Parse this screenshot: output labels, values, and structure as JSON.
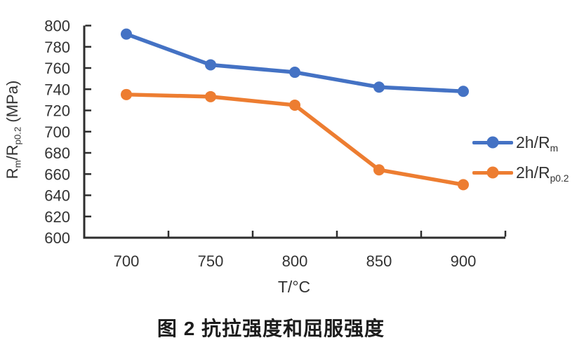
{
  "figure": {
    "caption": "图 2 抗拉强度和屈服强度"
  },
  "chart_data": {
    "type": "line",
    "title": "",
    "categories": [
      "700",
      "750",
      "800",
      "850",
      "900"
    ],
    "x_values": [
      700,
      750,
      800,
      850,
      900
    ],
    "series": [
      {
        "name": "2h/Rm",
        "label_parts": [
          {
            "t": "2h/R"
          },
          {
            "t": "m",
            "sub": true
          }
        ],
        "color": "#4472C4",
        "values": [
          792,
          763,
          756,
          742,
          738
        ]
      },
      {
        "name": "2h/Rp0.2",
        "label_parts": [
          {
            "t": "2h/R"
          },
          {
            "t": "p0.2",
            "sub": true
          }
        ],
        "color": "#ED7D31",
        "values": [
          735,
          733,
          725,
          664,
          650
        ]
      }
    ],
    "xlabel": "T/°C",
    "ylabel": "Rm/Rp0.2 (MPa)",
    "ylabel_parts": [
      {
        "t": "R"
      },
      {
        "t": "m",
        "sub": true
      },
      {
        "t": "/R"
      },
      {
        "t": "p0.2",
        "sub": true
      },
      {
        "t": " (MPa)"
      }
    ],
    "ylim": [
      600,
      800
    ],
    "ytick_step": 20,
    "ytick_labels": [
      "600",
      "620",
      "640",
      "660",
      "680",
      "700",
      "720",
      "740",
      "760",
      "780",
      "800"
    ],
    "grid": false,
    "legend_position": "right-middle",
    "marker": "circle",
    "axis_color": "#2e2e2e",
    "text_color": "#333333"
  }
}
